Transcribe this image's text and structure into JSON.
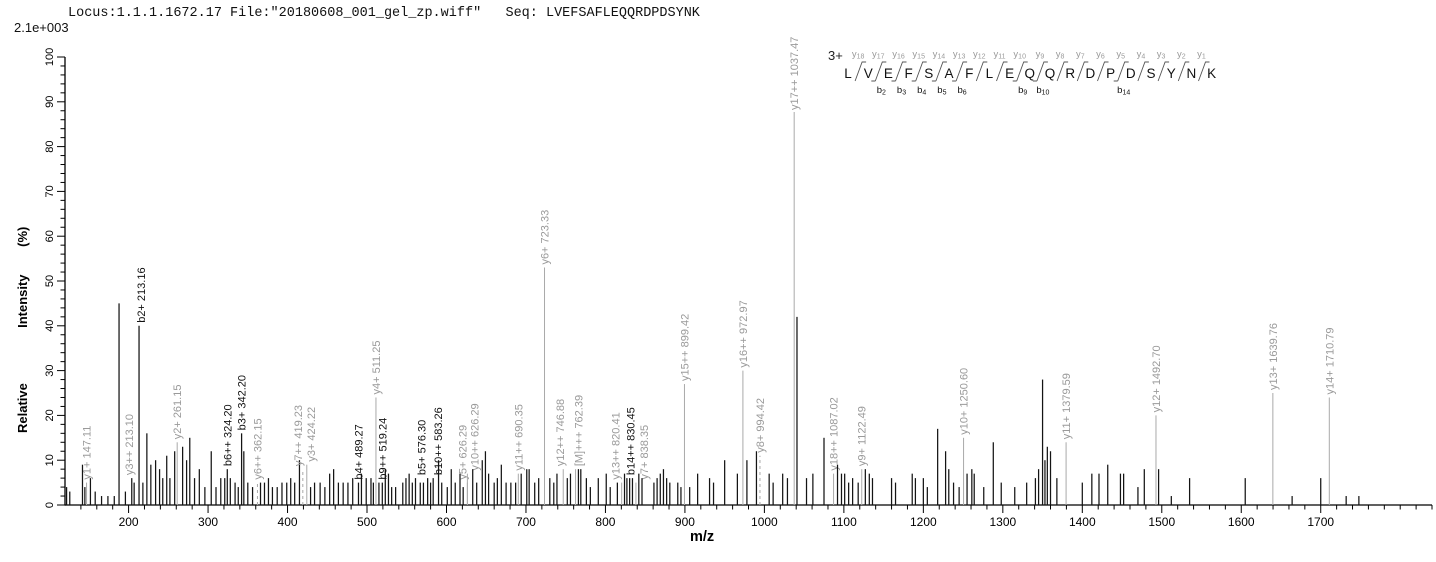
{
  "header": {
    "title": "Locus:1.1.1.1672.17 File:\"20180608_001_gel_zp.wiff\"   Seq: LVEFSAFLEQQRDPDSYNK",
    "max_intensity": "2.1e+003"
  },
  "axes": {
    "x_label": "m/z",
    "y_label": "Relative  Intensity (%)",
    "x_range": [
      120,
      1840
    ],
    "x_ticks": [
      200,
      300,
      400,
      500,
      600,
      700,
      800,
      900,
      1000,
      1100,
      1200,
      1300,
      1400,
      1500,
      1600,
      1700
    ],
    "x_minor_start": 140,
    "x_minor_step": 20,
    "y_range": [
      0,
      100
    ],
    "y_ticks": [
      0,
      10,
      20,
      30,
      40,
      50,
      60,
      70,
      80,
      90,
      100
    ],
    "y_major_step": 10,
    "y_minor_step": 2
  },
  "peptide": {
    "charge": "3+",
    "sequence": "LVEFSAFLEQQRDPDSYNK",
    "b_ions": [
      2,
      3,
      4,
      5,
      6,
      9,
      10,
      14
    ]
  },
  "colors": {
    "black_peak": "#141414",
    "gray_peak": "#a9a9a9",
    "gray_label": "#9a9a9a",
    "black_label": "#111111",
    "axis": "#000000"
  },
  "chart_data": {
    "type": "bar",
    "subtype": "mass-spectrum",
    "title": "MS/MS spectrum LVEFSAFLEQQRDPDSYNK (3+), base peak 2.1e+003",
    "xlabel": "m/z",
    "ylabel": "Relative  Intensity (%)",
    "xlim": [
      120,
      1840
    ],
    "ylim": [
      0,
      100
    ],
    "grid": false,
    "peak_format": "[mz, intensity_pct, label, line(g=gray,b=black), dashed, label_dx]",
    "peaks": [
      [
        122,
        4
      ],
      [
        126,
        3
      ],
      [
        142,
        9
      ],
      [
        145,
        4
      ],
      [
        147.11,
        5,
        "y1+ 147.11",
        "g",
        0,
        0
      ],
      [
        152,
        6
      ],
      [
        158,
        3
      ],
      [
        166,
        2
      ],
      [
        174,
        2
      ],
      [
        182,
        2
      ],
      [
        188,
        45
      ],
      [
        196,
        3
      ],
      [
        204,
        6
      ],
      [
        207,
        5
      ],
      [
        213.1,
        6,
        "y3++ 213.10",
        "g",
        0,
        -10
      ],
      [
        213.16,
        40,
        "b2+ 213.16",
        "b",
        0,
        2
      ],
      [
        218,
        5
      ],
      [
        223,
        16
      ],
      [
        228,
        9
      ],
      [
        234,
        10
      ],
      [
        239,
        8
      ],
      [
        243,
        6
      ],
      [
        248,
        11
      ],
      [
        252,
        6
      ],
      [
        258,
        12
      ],
      [
        261.15,
        14,
        "y2+ 261.15",
        "g",
        0,
        0
      ],
      [
        268,
        13
      ],
      [
        273,
        10
      ],
      [
        277,
        15
      ],
      [
        283,
        6
      ],
      [
        289,
        8
      ],
      [
        296,
        4
      ],
      [
        304,
        12
      ],
      [
        310,
        4
      ],
      [
        316,
        6
      ],
      [
        321,
        6
      ],
      [
        324.2,
        8,
        "b6++ 324.20",
        "b",
        0,
        0
      ],
      [
        328,
        6
      ],
      [
        334,
        5
      ],
      [
        338,
        4
      ],
      [
        342.2,
        16,
        "b3+ 342.20",
        "b",
        0,
        0
      ],
      [
        345,
        12
      ],
      [
        350,
        5
      ],
      [
        356,
        4
      ],
      [
        362.15,
        5,
        "y6++ 362.15",
        "g",
        1,
        0
      ],
      [
        366,
        5
      ],
      [
        371,
        5
      ],
      [
        376,
        6
      ],
      [
        381,
        4
      ],
      [
        387,
        4
      ],
      [
        393,
        5
      ],
      [
        399,
        5
      ],
      [
        404,
        6
      ],
      [
        409,
        5
      ],
      [
        415,
        10
      ],
      [
        419.23,
        8,
        "y7++ 419.23",
        "g",
        1,
        -5
      ],
      [
        424.22,
        9,
        "y3+ 424.22",
        "g",
        0,
        4
      ],
      [
        429,
        4
      ],
      [
        434,
        5
      ],
      [
        441,
        5
      ],
      [
        447,
        4
      ],
      [
        453,
        7
      ],
      [
        458,
        8
      ],
      [
        464,
        5
      ],
      [
        470,
        5
      ],
      [
        476,
        5
      ],
      [
        482,
        6
      ],
      [
        489.27,
        5,
        "b4+ 489.27",
        "b",
        0,
        0
      ],
      [
        493,
        7
      ],
      [
        499,
        6
      ],
      [
        505,
        6
      ],
      [
        508,
        5
      ],
      [
        511.25,
        24,
        "y4+ 511.25",
        "g",
        0,
        0
      ],
      [
        515,
        5
      ],
      [
        519.24,
        5,
        "b9++ 519.24",
        "b",
        0,
        0
      ],
      [
        523,
        8
      ],
      [
        527,
        7
      ],
      [
        531,
        4
      ],
      [
        536,
        4
      ],
      [
        545,
        5
      ],
      [
        549,
        6
      ],
      [
        553,
        7
      ],
      [
        557,
        5
      ],
      [
        561,
        6
      ],
      [
        567,
        5
      ],
      [
        571,
        5
      ],
      [
        576.3,
        6,
        "b5+ 576.30",
        "b",
        0,
        -6
      ],
      [
        580,
        5
      ],
      [
        583.26,
        6,
        "b10++ 583.26",
        "b",
        0,
        5
      ],
      [
        590,
        10
      ],
      [
        594,
        5
      ],
      [
        601,
        4
      ],
      [
        606,
        8
      ],
      [
        611,
        5
      ],
      [
        617,
        7
      ],
      [
        621,
        4
      ],
      [
        626.29,
        5,
        "y5+ 626.29",
        "g",
        0,
        -5
      ],
      [
        626.29,
        7,
        "y10++ 626.29",
        "g",
        0,
        7
      ],
      [
        633,
        8
      ],
      [
        638,
        5
      ],
      [
        645,
        10
      ],
      [
        649,
        12
      ],
      [
        653,
        7
      ],
      [
        660,
        5
      ],
      [
        664,
        6
      ],
      [
        669,
        9
      ],
      [
        675,
        5
      ],
      [
        681,
        5
      ],
      [
        687,
        5
      ],
      [
        690.35,
        7,
        "y11++ 690.35",
        "g",
        0,
        0
      ],
      [
        694,
        7
      ],
      [
        701,
        8
      ],
      [
        704,
        8
      ],
      [
        711,
        5
      ],
      [
        716,
        6
      ],
      [
        723.33,
        53,
        "y6+ 723.33",
        "g",
        0,
        0
      ],
      [
        730,
        6
      ],
      [
        735,
        5
      ],
      [
        739,
        7
      ],
      [
        746.88,
        8,
        "y12++ 746.88",
        "g",
        0,
        -3
      ],
      [
        752,
        6
      ],
      [
        756,
        7
      ],
      [
        762.39,
        8,
        "[M]+++ 762.39",
        "g",
        0,
        3
      ],
      [
        766,
        8
      ],
      [
        769,
        8
      ],
      [
        776,
        6
      ],
      [
        781,
        4
      ],
      [
        791,
        6
      ],
      [
        801,
        7
      ],
      [
        806,
        4
      ],
      [
        815,
        5
      ],
      [
        820.41,
        5,
        "y13++ 820.41",
        "g",
        0,
        -6
      ],
      [
        824,
        7
      ],
      [
        827,
        6
      ],
      [
        830.45,
        6,
        "b14++ 830.45",
        "b",
        0,
        1
      ],
      [
        834,
        6
      ],
      [
        838.35,
        5,
        "y7+ 838.35",
        "g",
        0,
        8
      ],
      [
        842,
        7
      ],
      [
        846,
        6
      ],
      [
        861,
        5
      ],
      [
        865,
        6
      ],
      [
        869,
        7
      ],
      [
        873,
        8
      ],
      [
        877,
        6
      ],
      [
        881,
        5
      ],
      [
        891,
        5
      ],
      [
        895,
        4
      ],
      [
        899.42,
        27,
        "y15++ 899.42",
        "g",
        0,
        0
      ],
      [
        906,
        4
      ],
      [
        916,
        7
      ],
      [
        931,
        6
      ],
      [
        936,
        5
      ],
      [
        950,
        10
      ],
      [
        966,
        7
      ],
      [
        972.97,
        30,
        "y16++ 972.97",
        "g",
        0,
        0
      ],
      [
        978,
        10
      ],
      [
        990,
        12
      ],
      [
        994.42,
        11,
        "y8+ 994.42",
        "g",
        1,
        0
      ],
      [
        1006,
        7
      ],
      [
        1011,
        5
      ],
      [
        1023,
        7
      ],
      [
        1029,
        6
      ],
      [
        1037.47,
        100,
        "y17++ 1037.47",
        "g",
        0,
        0
      ],
      [
        1041,
        42
      ],
      [
        1053,
        6
      ],
      [
        1061,
        7
      ],
      [
        1075,
        15
      ],
      [
        1087.02,
        7,
        "y18++ 1087.02",
        "g",
        0,
        0
      ],
      [
        1092,
        9
      ],
      [
        1097,
        7
      ],
      [
        1101,
        7
      ],
      [
        1106,
        5
      ],
      [
        1111,
        6
      ],
      [
        1118,
        5
      ],
      [
        1122.49,
        8,
        "y9+ 1122.49",
        "g",
        0,
        0
      ],
      [
        1127,
        8
      ],
      [
        1132,
        7
      ],
      [
        1136,
        6
      ],
      [
        1160,
        6
      ],
      [
        1165,
        5
      ],
      [
        1186,
        7
      ],
      [
        1190,
        6
      ],
      [
        1200,
        6
      ],
      [
        1205,
        4
      ],
      [
        1218,
        17
      ],
      [
        1228,
        12
      ],
      [
        1232,
        8
      ],
      [
        1238,
        5
      ],
      [
        1245,
        4
      ],
      [
        1250.6,
        15,
        "y10+ 1250.60",
        "g",
        0,
        0
      ],
      [
        1255,
        7
      ],
      [
        1261,
        8
      ],
      [
        1264,
        7
      ],
      [
        1276,
        4
      ],
      [
        1288,
        14
      ],
      [
        1298,
        5
      ],
      [
        1315,
        4
      ],
      [
        1330,
        5
      ],
      [
        1341,
        6
      ],
      [
        1345,
        8
      ],
      [
        1350,
        28
      ],
      [
        1353,
        10
      ],
      [
        1356,
        13
      ],
      [
        1360,
        12
      ],
      [
        1368,
        6
      ],
      [
        1379.59,
        14,
        "y11+ 1379.59",
        "g",
        0,
        0
      ],
      [
        1400,
        5
      ],
      [
        1412,
        7
      ],
      [
        1421,
        7
      ],
      [
        1432,
        9
      ],
      [
        1448,
        7
      ],
      [
        1452,
        7
      ],
      [
        1470,
        4
      ],
      [
        1478,
        8
      ],
      [
        1492.7,
        20,
        "y12+ 1492.70",
        "g",
        0,
        0
      ],
      [
        1496,
        8
      ],
      [
        1512,
        2
      ],
      [
        1535,
        6
      ],
      [
        1605,
        6
      ],
      [
        1639.76,
        25,
        "y13+ 1639.76",
        "g",
        0,
        0
      ],
      [
        1664,
        2
      ],
      [
        1700,
        6
      ],
      [
        1710.79,
        24,
        "y14+ 1710.79",
        "g",
        0,
        0
      ],
      [
        1732,
        2
      ],
      [
        1748,
        2
      ]
    ]
  }
}
